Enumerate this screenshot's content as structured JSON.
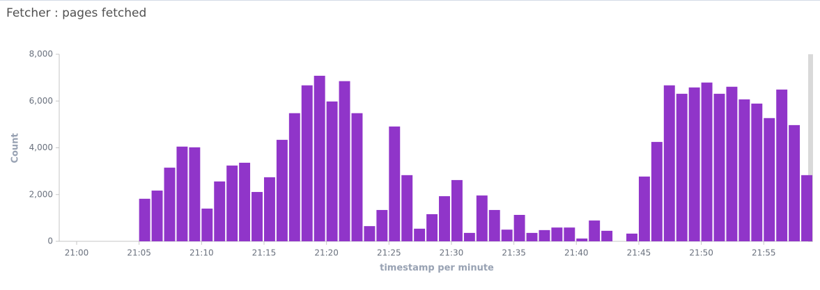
{
  "chart_data": {
    "type": "bar",
    "title": "Fetcher : pages fetched",
    "x_label": "timestamp per minute",
    "y_label": "Count",
    "x": [
      "21:05",
      "21:06",
      "21:07",
      "21:08",
      "21:09",
      "21:10",
      "21:11",
      "21:12",
      "21:13",
      "21:14",
      "21:15",
      "21:16",
      "21:17",
      "21:18",
      "21:19",
      "21:20",
      "21:21",
      "21:22",
      "21:23",
      "21:24",
      "21:25",
      "21:26",
      "21:27",
      "21:28",
      "21:29",
      "21:30",
      "21:31",
      "21:32",
      "21:33",
      "21:34",
      "21:35",
      "21:36",
      "21:37",
      "21:38",
      "21:39",
      "21:40",
      "21:41",
      "21:42",
      "21:43",
      "21:44",
      "21:45",
      "21:46",
      "21:47",
      "21:48",
      "21:49",
      "21:50",
      "21:51",
      "21:52",
      "21:53",
      "21:54",
      "21:55",
      "21:56",
      "21:57",
      "21:58"
    ],
    "values": [
      1820,
      2170,
      3150,
      4050,
      4020,
      1400,
      2560,
      3240,
      3360,
      2110,
      2740,
      4340,
      5480,
      6670,
      7080,
      5980,
      6850,
      5480,
      650,
      1340,
      4910,
      2830,
      540,
      1160,
      1930,
      2620,
      360,
      1960,
      1340,
      500,
      1130,
      360,
      480,
      590,
      590,
      120,
      890,
      450,
      null,
      330,
      2770,
      4250,
      6670,
      6310,
      6580,
      6790,
      6310,
      6610,
      6070,
      5890,
      5270,
      6490,
      4970,
      2830
    ],
    "color": "#9035c9",
    "xlim": [
      "21:00",
      "21:59"
    ],
    "xticks": [
      "21:00",
      "21:05",
      "21:10",
      "21:15",
      "21:20",
      "21:25",
      "21:30",
      "21:35",
      "21:40",
      "21:45",
      "21:50",
      "21:55"
    ],
    "ylim": [
      0,
      8000
    ],
    "yticks": [
      0,
      {
        "value": 2000,
        "label": "2,000"
      },
      {
        "value": 4000,
        "label": "4,000"
      },
      {
        "value": 6000,
        "label": "6,000"
      },
      {
        "value": 8000,
        "label": "8,000"
      }
    ]
  }
}
